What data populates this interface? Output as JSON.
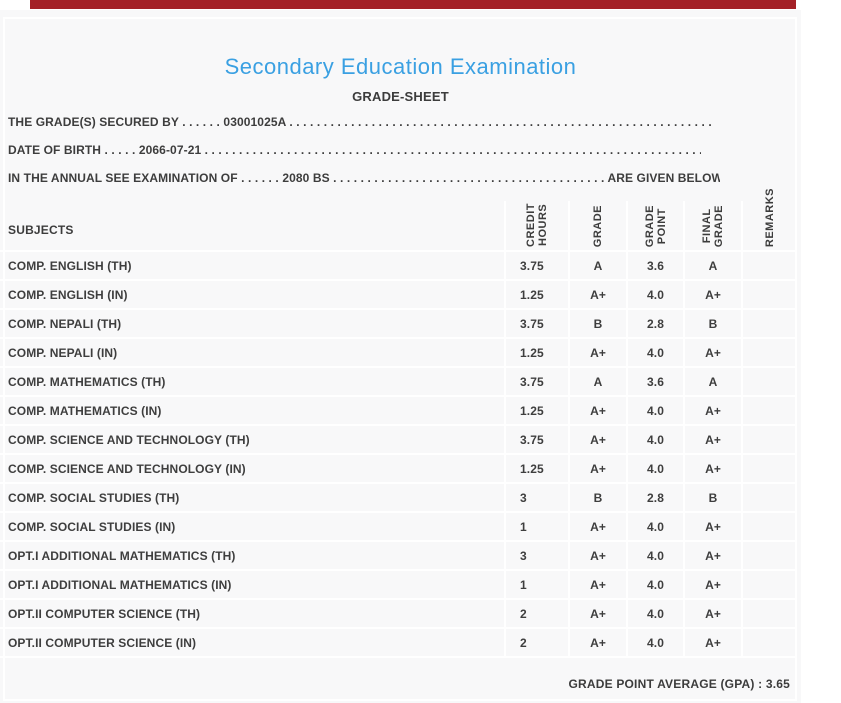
{
  "site": {
    "top_bar_color": "#a42127",
    "sheet_background": "#f8f8f9",
    "title_color": "#3aa0e2"
  },
  "header": {
    "title": "Secondary Education Examination",
    "subtitle": "GRADE-SHEET"
  },
  "student_info": {
    "grades_secured_by": {
      "label": "THE GRADE(S) SECURED BY",
      "dots_before": " . . . . . . ",
      "value": "03001025A",
      "dots_after": " . . . . . . . . . . . . . . . . . . . . . . . . . . . . . . . . . . . . . . . . . . . . . . . . . . . . . . . . . . . . . . . . . . . . . ."
    },
    "date_of_birth": {
      "label": "DATE OF BIRTH",
      "dots_before": " . . . . . ",
      "value": "2066-07-21",
      "dots_after": " . . . . . . . . . . . . . . . . . . . . . . . . . . . . . . . . . . . . . . . . . . . . . . . . . . . . . . . . . . . . . . . . . . . . . . . . . . . . . . . ."
    },
    "examination": {
      "label": "IN THE ANNUAL SEE EXAMINATION OF",
      "dots_before": " . . . . . . ",
      "value": "2080 BS",
      "dots_middle": " . . . . . . . . . . . . . . . . . . . . . . . . . . . . . . . . . . . . . . . . ",
      "suffix": "ARE GIVEN BELOW",
      "dots_end": " . . ."
    }
  },
  "table": {
    "subjects_header": "SUBJECTS",
    "columns": [
      "CREDIT\nHOURS",
      "GRADE",
      "GRADE\nPOINT",
      "FINAL\nGRADE",
      "REMARKS"
    ],
    "rows": [
      {
        "subject": "COMP. ENGLISH (TH)",
        "credit": "3.75",
        "grade": "A",
        "point": "3.6",
        "final": "A",
        "remarks": ""
      },
      {
        "subject": "COMP. ENGLISH (IN)",
        "credit": "1.25",
        "grade": "A+",
        "point": "4.0",
        "final": "A+",
        "remarks": ""
      },
      {
        "subject": "COMP. NEPALI (TH)",
        "credit": "3.75",
        "grade": "B",
        "point": "2.8",
        "final": "B",
        "remarks": ""
      },
      {
        "subject": "COMP. NEPALI (IN)",
        "credit": "1.25",
        "grade": "A+",
        "point": "4.0",
        "final": "A+",
        "remarks": ""
      },
      {
        "subject": "COMP. MATHEMATICS (TH)",
        "credit": "3.75",
        "grade": "A",
        "point": "3.6",
        "final": "A",
        "remarks": ""
      },
      {
        "subject": "COMP. MATHEMATICS (IN)",
        "credit": "1.25",
        "grade": "A+",
        "point": "4.0",
        "final": "A+",
        "remarks": ""
      },
      {
        "subject": "COMP. SCIENCE AND TECHNOLOGY (TH)",
        "credit": "3.75",
        "grade": "A+",
        "point": "4.0",
        "final": "A+",
        "remarks": ""
      },
      {
        "subject": "COMP. SCIENCE AND TECHNOLOGY (IN)",
        "credit": "1.25",
        "grade": "A+",
        "point": "4.0",
        "final": "A+",
        "remarks": ""
      },
      {
        "subject": "COMP. SOCIAL STUDIES (TH)",
        "credit": "3",
        "grade": "B",
        "point": "2.8",
        "final": "B",
        "remarks": ""
      },
      {
        "subject": "COMP. SOCIAL STUDIES (IN)",
        "credit": "1",
        "grade": "A+",
        "point": "4.0",
        "final": "A+",
        "remarks": ""
      },
      {
        "subject": "OPT.I ADDITIONAL MATHEMATICS (TH)",
        "credit": "3",
        "grade": "A+",
        "point": "4.0",
        "final": "A+",
        "remarks": ""
      },
      {
        "subject": "OPT.I ADDITIONAL MATHEMATICS (IN)",
        "credit": "1",
        "grade": "A+",
        "point": "4.0",
        "final": "A+",
        "remarks": ""
      },
      {
        "subject": "OPT.II COMPUTER SCIENCE (TH)",
        "credit": "2",
        "grade": "A+",
        "point": "4.0",
        "final": "A+",
        "remarks": ""
      },
      {
        "subject": "OPT.II COMPUTER SCIENCE (IN)",
        "credit": "2",
        "grade": "A+",
        "point": "4.0",
        "final": "A+",
        "remarks": ""
      }
    ],
    "gpa_label": "GRADE POINT AVERAGE (GPA) : ",
    "gpa_value": "3.65"
  }
}
